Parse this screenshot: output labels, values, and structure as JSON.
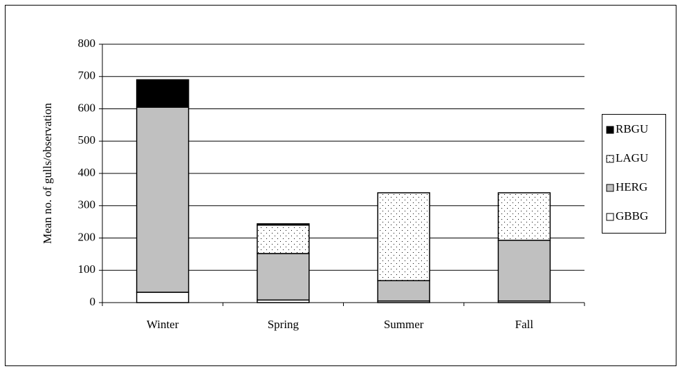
{
  "chart_data": {
    "type": "stacked_bar",
    "ylabel": "Mean no. of gulls/observation",
    "categories": [
      "Winter",
      "Spring",
      "Summer",
      "Fall"
    ],
    "series": [
      {
        "name": "GBBG",
        "color": "#ffffff",
        "values": [
          32,
          8,
          5,
          5
        ]
      },
      {
        "name": "HERG",
        "color": "#c0c0c0",
        "values": [
          573,
          144,
          63,
          188
        ]
      },
      {
        "name": "LAGU",
        "color": "#ffffff",
        "pattern": "dots",
        "values": [
          0,
          88,
          272,
          147
        ]
      },
      {
        "name": "RBGU",
        "color": "#000000",
        "values": [
          85,
          4,
          0,
          0
        ]
      }
    ],
    "ylim": [
      0,
      800
    ],
    "yticks": [
      0,
      100,
      200,
      300,
      400,
      500,
      600,
      700,
      800
    ],
    "grid": true,
    "legend": "right"
  }
}
